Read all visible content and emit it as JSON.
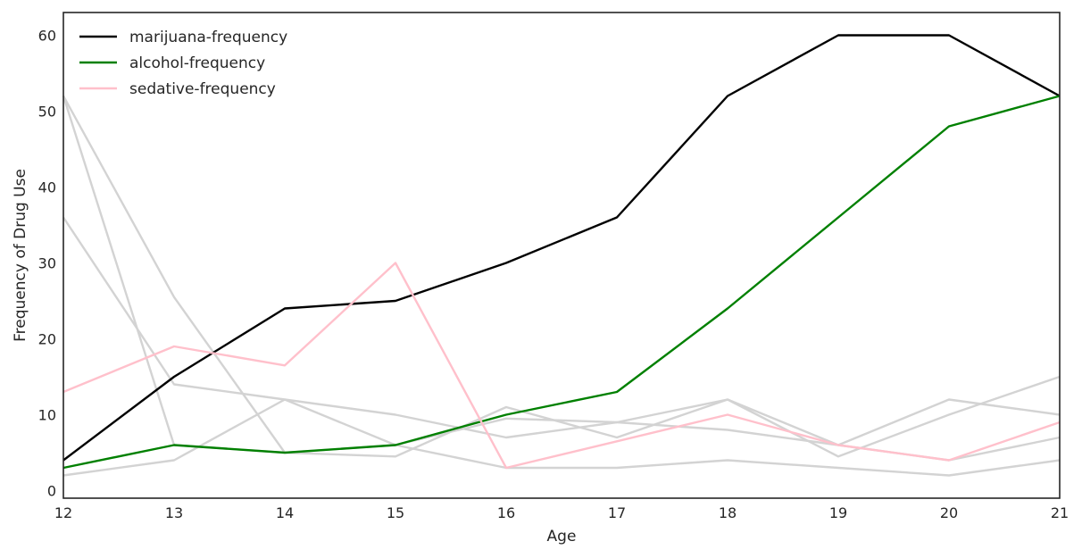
{
  "chart_data": {
    "type": "line",
    "title": "",
    "xlabel": "Age",
    "ylabel": "Frequency of Drug Use",
    "x": [
      12,
      13,
      14,
      15,
      16,
      17,
      18,
      19,
      20,
      21
    ],
    "xlim": [
      12,
      21
    ],
    "ylim": [
      -1,
      63
    ],
    "xticks": [
      "12",
      "13",
      "14",
      "15",
      "16",
      "17",
      "18",
      "19",
      "20",
      "21"
    ],
    "yticks": [
      "0",
      "10",
      "20",
      "30",
      "40",
      "50",
      "60"
    ],
    "ytick_values": [
      0,
      10,
      20,
      30,
      40,
      50,
      60
    ],
    "grid": false,
    "legend_position": "top-left",
    "series": [
      {
        "name": "",
        "color": "#d3d3d3",
        "values": [
          36,
          14,
          12,
          10,
          7,
          9,
          12,
          4.5,
          10,
          15
        ]
      },
      {
        "name": "",
        "color": "#d3d3d3",
        "values": [
          52,
          25.5,
          5,
          4.5,
          11,
          7,
          12,
          6,
          12,
          10
        ]
      },
      {
        "name": "",
        "color": "#d3d3d3",
        "values": [
          52,
          6,
          5,
          6,
          9.5,
          9,
          8,
          6,
          4,
          7
        ]
      },
      {
        "name": "",
        "color": "#d3d3d3",
        "values": [
          2,
          4,
          12,
          6,
          3,
          3,
          4,
          3,
          2,
          4
        ]
      },
      {
        "name": "marijuana-frequency",
        "color": "#000000",
        "values": [
          4,
          15,
          24,
          25,
          30,
          36,
          52,
          60,
          60,
          52
        ]
      },
      {
        "name": "alcohol-frequency",
        "color": "#008000",
        "values": [
          3,
          6,
          5,
          6,
          10,
          13,
          24,
          36,
          48,
          52
        ]
      },
      {
        "name": "sedative-frequency",
        "color": "#ffc0cb",
        "values": [
          13,
          19,
          16.5,
          30,
          3,
          6.5,
          10,
          6,
          4,
          9
        ]
      }
    ]
  }
}
